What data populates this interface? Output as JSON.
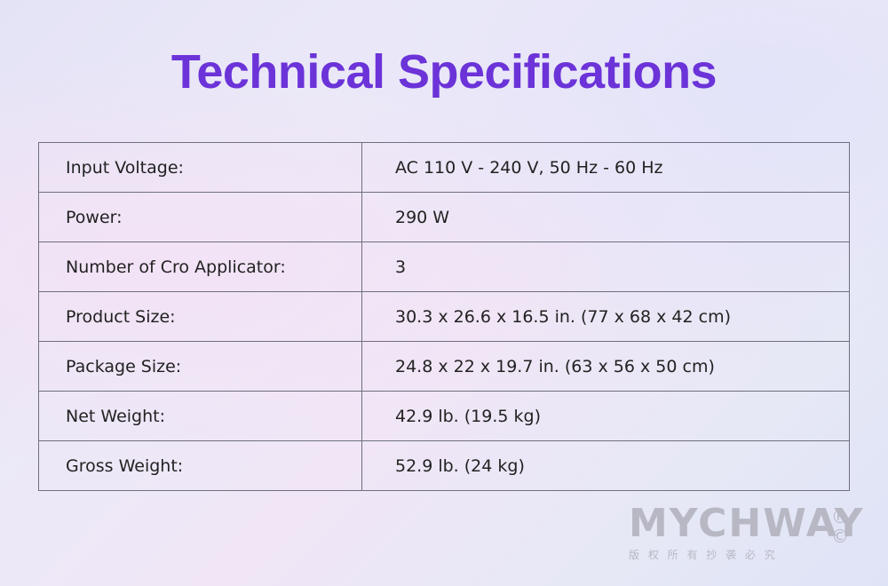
{
  "header": {
    "title": "Technical Specifications"
  },
  "table": {
    "rows": [
      [
        "Input Voltage:",
        "AC 110 V - 240 V, 50 Hz - 60 Hz"
      ],
      [
        "Power:",
        "290 W"
      ],
      [
        "Number of Cro Applicator:",
        "3"
      ],
      [
        "Product Size:",
        "30.3 x 26.6 x 16.5 in. (77 x 68 x 42 cm)"
      ],
      [
        "Package Size:",
        "24.8 x 22 x 19.7 in. (63 x 56 x 50 cm)"
      ],
      [
        "Net Weight:",
        "42.9 lb. (19.5 kg)"
      ],
      [
        "Gross Weight:",
        "52.9 lb. (24 kg)"
      ]
    ]
  },
  "watermark": {
    "brand": "MYCHWAY",
    "registered": "®",
    "copyright": "©",
    "notice": "版 权 所 有   抄 袭 必 究"
  }
}
